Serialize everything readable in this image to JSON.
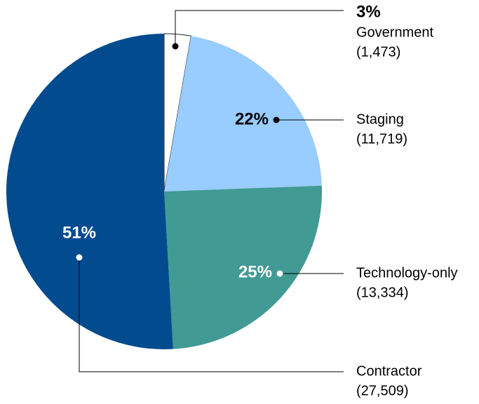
{
  "chart_data": {
    "type": "pie",
    "categories": [
      "Government",
      "Staging",
      "Technology-only",
      "Contractor"
    ],
    "values": [
      3,
      22,
      25,
      51
    ],
    "value_labels": [
      "3%",
      "22%",
      "25%",
      "51%"
    ],
    "counts": [
      1473,
      11719,
      13334,
      27509
    ],
    "count_labels": [
      "(1,473)",
      "(11,719)",
      "(13,334)",
      "(27,509)"
    ],
    "colors": [
      "#ffffff",
      "#99ccff",
      "#419a93",
      "#034b8f"
    ]
  }
}
